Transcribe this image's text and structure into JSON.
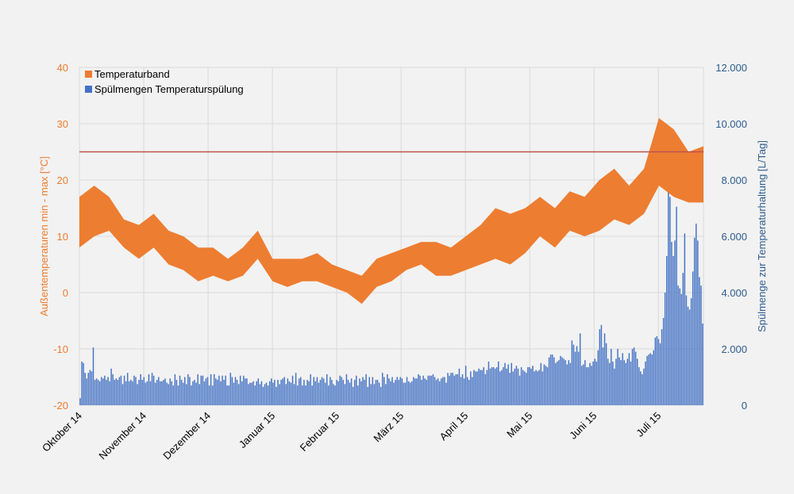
{
  "chart_data": {
    "type": "area+bar",
    "x_tick_labels": [
      "Oktober 14",
      "November 14",
      "Dezember 14",
      "Januar 15",
      "Februar 15",
      "März 15",
      "April 15",
      "Mai 15",
      "Juni 15",
      "Juli 15"
    ],
    "y_left": {
      "label": "Außentemperaturen min - max [°C]",
      "ticks": [
        "40",
        "30",
        "20",
        "10",
        "0",
        "-10",
        "-20"
      ],
      "ylim": [
        -20,
        40
      ]
    },
    "y_right": {
      "label": "Spülmenge zur Temperaturhaltung [L/Tag]",
      "ticks": [
        "12.000",
        "10.000",
        "8.000",
        "6.000",
        "4.000",
        "2.000",
        "0"
      ],
      "ylim": [
        0,
        12000
      ]
    },
    "threshold_line": {
      "value": 25,
      "color": "#c0504d"
    },
    "series": [
      {
        "name": "Temperaturband",
        "type": "band",
        "axis": "left",
        "color": "#ed7d31",
        "points": [
          [
            "Oct 1",
            8,
            17
          ],
          [
            "Oct 8",
            10,
            19
          ],
          [
            "Oct 15",
            11,
            17
          ],
          [
            "Oct 22",
            8,
            13
          ],
          [
            "Oct 29",
            6,
            12
          ],
          [
            "Nov 5",
            8,
            14
          ],
          [
            "Nov 12",
            5,
            11
          ],
          [
            "Nov 19",
            4,
            10
          ],
          [
            "Nov 26",
            2,
            8
          ],
          [
            "Dec 3",
            3,
            8
          ],
          [
            "Dec 10",
            2,
            6
          ],
          [
            "Dec 17",
            3,
            8
          ],
          [
            "Dec 24",
            6,
            11
          ],
          [
            "Dec 31",
            2,
            6
          ],
          [
            "Jan 7",
            1,
            6
          ],
          [
            "Jan 14",
            2,
            6
          ],
          [
            "Jan 21",
            2,
            7
          ],
          [
            "Jan 28",
            1,
            5
          ],
          [
            "Feb 4",
            0,
            4
          ],
          [
            "Feb 11",
            -2,
            3
          ],
          [
            "Feb 18",
            1,
            6
          ],
          [
            "Feb 25",
            2,
            7
          ],
          [
            "Mar 4",
            4,
            8
          ],
          [
            "Mar 11",
            5,
            9
          ],
          [
            "Mar 18",
            3,
            9
          ],
          [
            "Mar 25",
            3,
            8
          ],
          [
            "Apr 1",
            4,
            10
          ],
          [
            "Apr 8",
            5,
            12
          ],
          [
            "Apr 15",
            6,
            15
          ],
          [
            "Apr 22",
            5,
            14
          ],
          [
            "Apr 29",
            7,
            15
          ],
          [
            "May 6",
            10,
            17
          ],
          [
            "May 13",
            8,
            15
          ],
          [
            "May 20",
            11,
            18
          ],
          [
            "May 27",
            10,
            17
          ],
          [
            "Jun 3",
            11,
            20
          ],
          [
            "Jun 10",
            13,
            22
          ],
          [
            "Jun 17",
            12,
            19
          ],
          [
            "Jun 24",
            14,
            22
          ],
          [
            "Jul 1",
            19,
            31
          ],
          [
            "Jul 8",
            17,
            29
          ],
          [
            "Jul 15",
            16,
            25
          ],
          [
            "Jul 22",
            16,
            26
          ]
        ]
      },
      {
        "name": "Spülmengen Temperaturspülung",
        "type": "bar",
        "axis": "right",
        "color": "#4472c4",
        "values": [
          250,
          1550,
          1500,
          1150,
          950,
          1150,
          1250,
          1200,
          2050,
          900,
          950,
          900,
          850,
          1000,
          950,
          1050,
          900,
          1000,
          850,
          1300,
          1100,
          900,
          950,
          900,
          1000,
          1050,
          750,
          1050,
          850,
          1150,
          850,
          900,
          850,
          1050,
          1000,
          750,
          900,
          1100,
          900,
          1000,
          800,
          850,
          1100,
          850,
          1150,
          1050,
          800,
          900,
          1000,
          850,
          850,
          900,
          950,
          800,
          750,
          950,
          850,
          700,
          1100,
          900,
          700,
          1050,
          900,
          800,
          1000,
          750,
          1100,
          1000,
          700,
          850,
          900,
          800,
          1100,
          750,
          1050,
          1050,
          850,
          950,
          1000,
          700,
          1100,
          700,
          1100,
          950,
          900,
          1050,
          850,
          1050,
          900,
          1050,
          700,
          700,
          1150,
          1000,
          800,
          1000,
          900,
          750,
          1050,
          850,
          1050,
          950,
          950,
          750,
          800,
          800,
          850,
          700,
          850,
          950,
          750,
          850,
          650,
          750,
          800,
          700,
          850,
          950,
          800,
          900,
          650,
          900,
          750,
          900,
          950,
          1000,
          750,
          950,
          850,
          800,
          1050,
          750,
          1150,
          700,
          950,
          1000,
          700,
          900,
          700,
          900,
          850,
          1100,
          700,
          1000,
          850,
          1000,
          800,
          900,
          1000,
          950,
          800,
          1100,
          700,
          1000,
          900,
          750,
          700,
          900,
          850,
          1050,
          1000,
          900,
          750,
          1100,
          900,
          800,
          950,
          650,
          900,
          1050,
          700,
          950,
          850,
          1000,
          900,
          1100,
          650,
          1000,
          750,
          1000,
          750,
          900,
          900,
          800,
          650,
          1150,
          1000,
          750,
          1100,
          950,
          850,
          1000,
          800,
          900,
          1000,
          900,
          1000,
          950,
          800,
          800,
          1000,
          850,
          800,
          850,
          1000,
          950,
          950,
          1100,
          1050,
          900,
          1050,
          950,
          900,
          1050,
          1050,
          1050,
          1100,
          1000,
          900,
          950,
          850,
          950,
          1000,
          1000,
          800,
          1150,
          1050,
          1150,
          1150,
          1050,
          1100,
          1100,
          1300,
          1000,
          1100,
          950,
          1400,
          1000,
          900,
          1200,
          1000,
          1250,
          1200,
          1200,
          1300,
          1250,
          1250,
          1350,
          1100,
          1250,
          1550,
          1300,
          1350,
          1350,
          1300,
          1350,
          1550,
          1200,
          1250,
          1350,
          1500,
          1300,
          1450,
          1150,
          1500,
          1200,
          1300,
          1400,
          1300,
          1050,
          1350,
          1250,
          1200,
          1150,
          1350,
          1350,
          1300,
          1400,
          1200,
          1250,
          1200,
          1250,
          1500,
          1200,
          1450,
          1400,
          1350,
          1700,
          1800,
          1800,
          1700,
          1500,
          1550,
          1600,
          1750,
          1700,
          1650,
          1600,
          1450,
          1600,
          1500,
          2300,
          2150,
          1900,
          2100,
          1900,
          2550,
          1400,
          1450,
          1600,
          1350,
          1350,
          1500,
          1400,
          1550,
          1650,
          1550,
          1950,
          2700,
          2850,
          2050,
          2550,
          2200,
          1650,
          1500,
          2000,
          1550,
          1300,
          1650,
          2000,
          1700,
          1600,
          1850,
          1600,
          1500,
          1650,
          1850,
          1550,
          2000,
          2050,
          1900,
          1650,
          1350,
          1200,
          1100,
          1300,
          1550,
          1750,
          1800,
          1850,
          1800,
          1950,
          2400,
          2450,
          2350,
          2200,
          2700,
          3100,
          4000,
          5300,
          7700,
          7400,
          5800,
          5300,
          5850,
          7050,
          4250,
          4150,
          3950,
          4700,
          6100,
          3900,
          3500,
          3400,
          3800,
          4750,
          5950,
          6450,
          5850,
          4550,
          4250,
          2900
        ]
      }
    ],
    "legend": {
      "position": "top-left",
      "entries": [
        "Temperaturband",
        "Spülmengen Temperaturspülung"
      ]
    },
    "grid": true
  },
  "colors": {
    "left_axis": "#ed7d31",
    "right_axis": "#2e5d8e",
    "grid": "#d9d9d9",
    "background": "#f2f2f2"
  }
}
